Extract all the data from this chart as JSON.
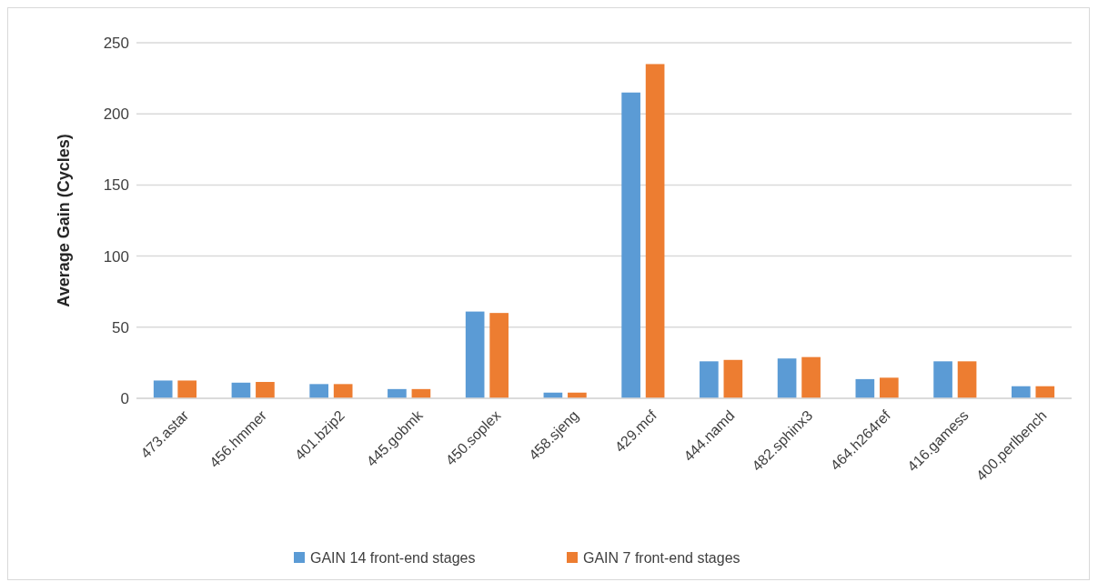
{
  "chart_data": {
    "type": "bar",
    "ylabel": "Average Gain (Cycles)",
    "categories": [
      "473.astar",
      "456.hmmer",
      "401.bzip2",
      "445.gobmk",
      "450.soplex",
      "458.sjeng",
      "429.mcf",
      "444.namd",
      "482.sphinx3",
      "464.h264ref",
      "416.gamess",
      "400.perlbench"
    ],
    "series": [
      {
        "name": "GAIN 14 front-end stages",
        "color": "#5b9bd5",
        "values": [
          12.5,
          11,
          10,
          6.5,
          61,
          4,
          215,
          26,
          28,
          13.5,
          26,
          8.5
        ]
      },
      {
        "name": "GAIN 7 front-end stages",
        "color": "#ed7d31",
        "values": [
          12.5,
          11.5,
          10,
          6.5,
          60,
          4,
          235,
          27,
          29,
          14.5,
          26,
          8.5
        ]
      }
    ],
    "ylim": [
      0,
      250
    ],
    "yticks": [
      0,
      50,
      100,
      150,
      200,
      250
    ],
    "grid": "y",
    "legend": "bottom"
  }
}
